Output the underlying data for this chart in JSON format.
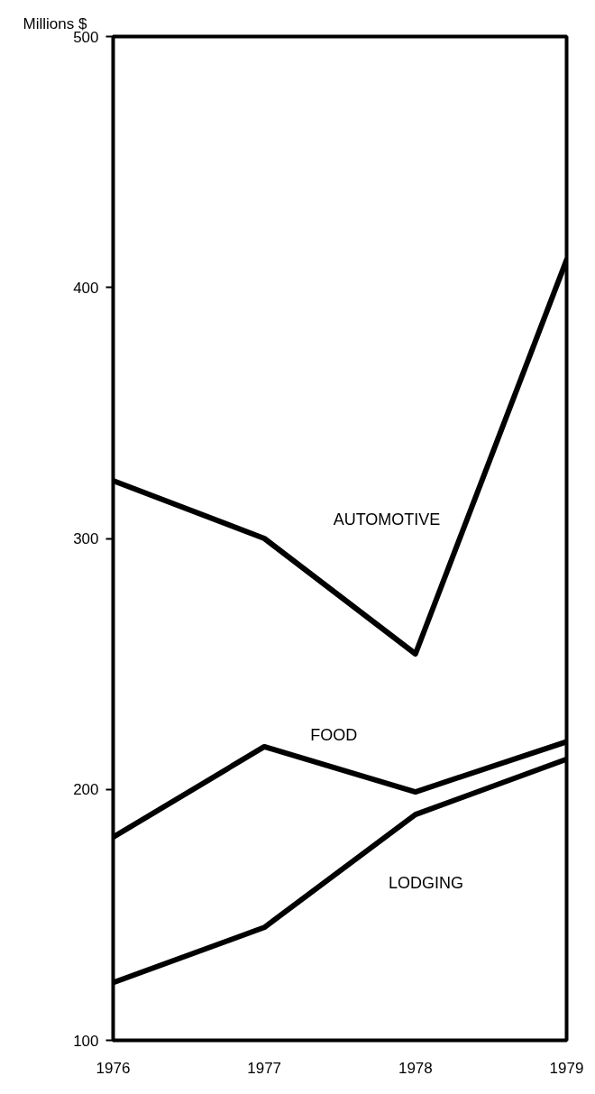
{
  "chart_data": {
    "type": "line",
    "ylabel": "Millions $",
    "x": [
      1976,
      1977,
      1978,
      1979
    ],
    "series": [
      {
        "name": "AUTOMOTIVE",
        "color": "#000000",
        "values": [
          323,
          300,
          254,
          411
        ]
      },
      {
        "name": "FOOD",
        "color": "#000000",
        "values": [
          181,
          217,
          199,
          219
        ]
      },
      {
        "name": "LODGING",
        "color": "#000000",
        "values": [
          123,
          145,
          190,
          212
        ]
      }
    ],
    "xlim": [
      1976,
      1979
    ],
    "xticks": [
      1976,
      1977,
      1978,
      1979
    ],
    "ylim": [
      100,
      500
    ],
    "yticks": [
      100,
      200,
      300,
      400,
      500
    ],
    "grid": false,
    "legend": false,
    "marker": "none",
    "line_style": "solid"
  }
}
